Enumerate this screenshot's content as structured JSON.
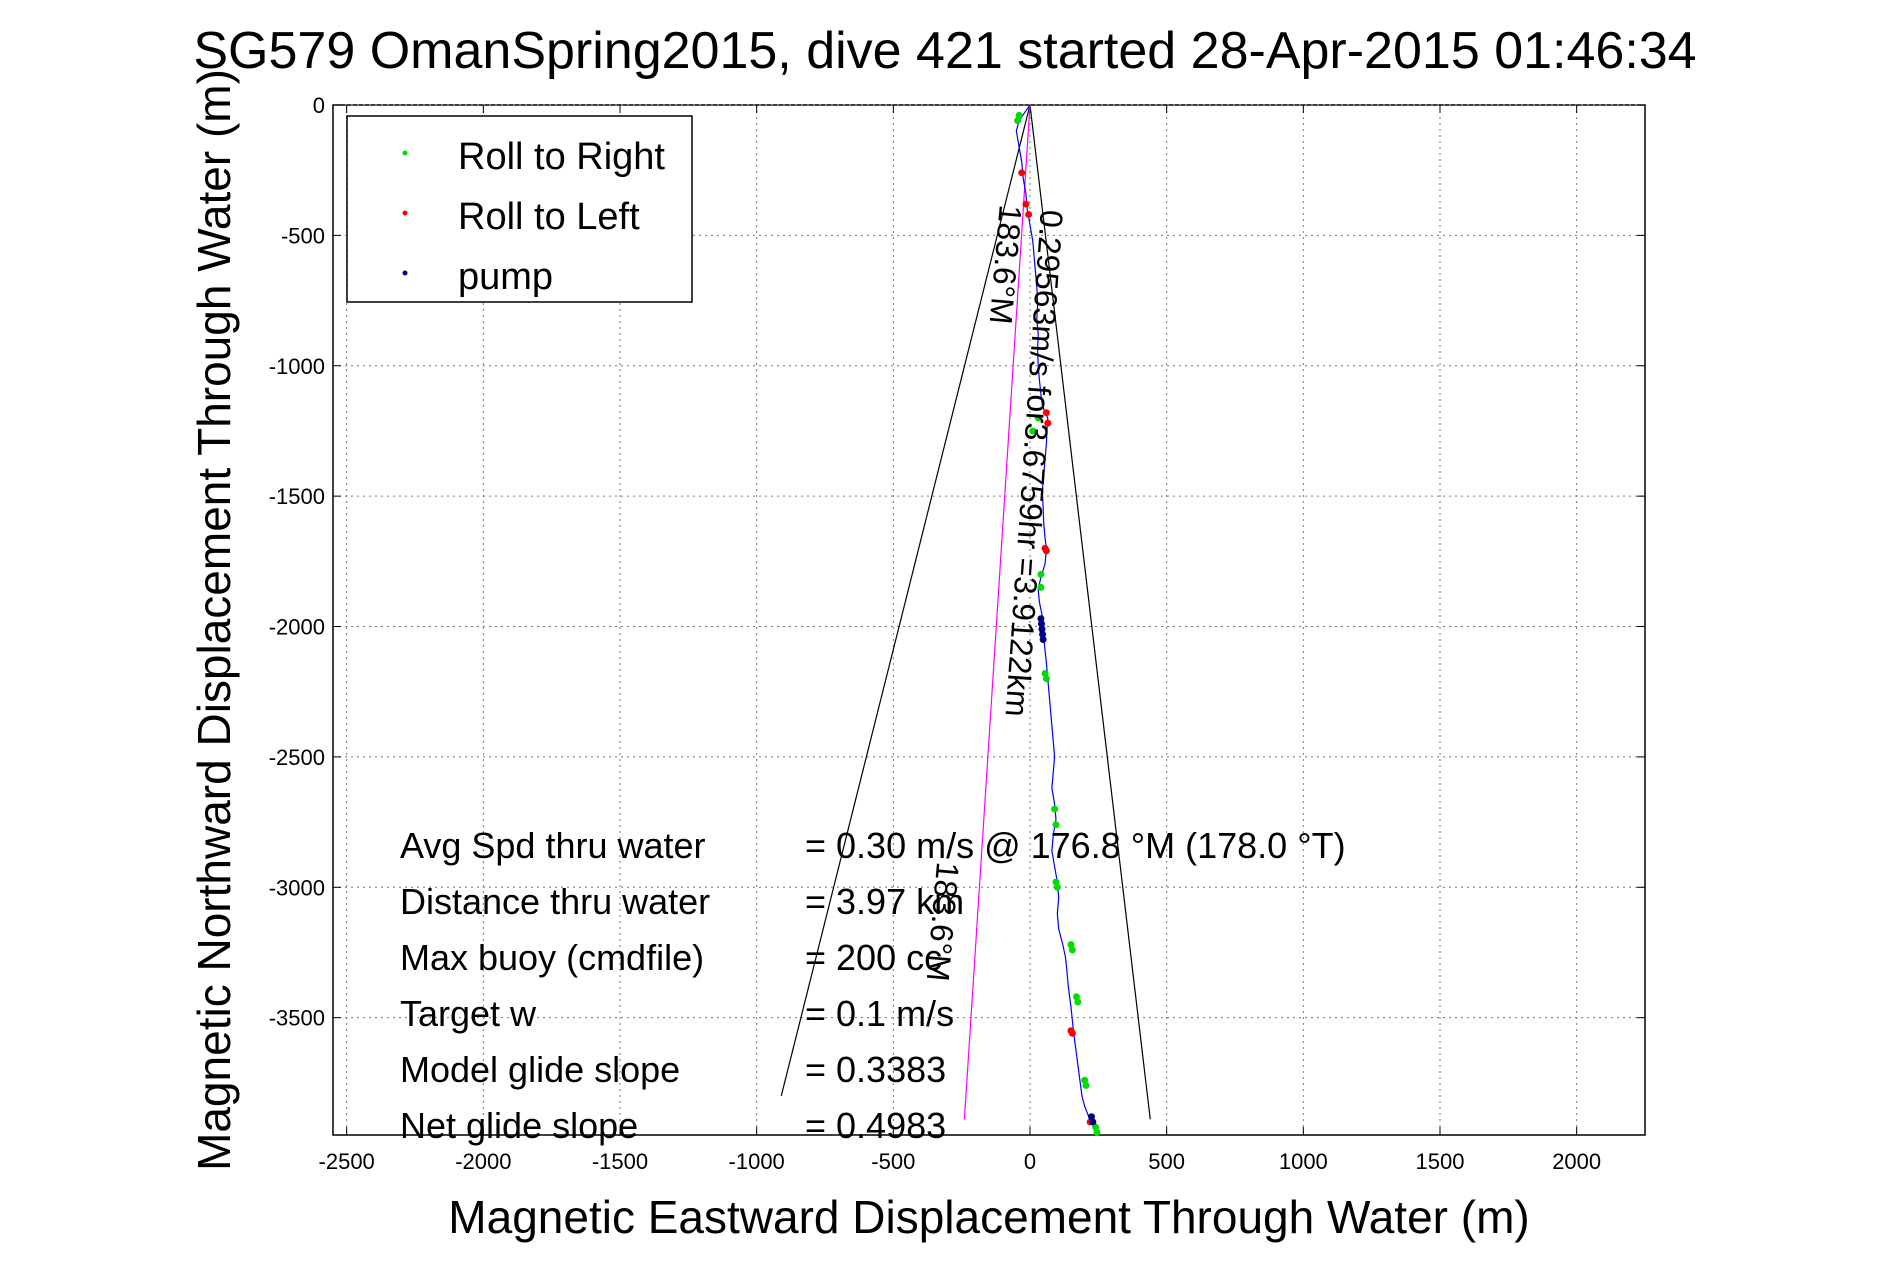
{
  "chart_data": {
    "type": "scatter",
    "title": "SG579 OmanSpring2015, dive 421 started 28-Apr-2015 01:46:34",
    "xlabel": "Magnetic Eastward Displacement Through Water (m)",
    "ylabel": "Magnetic Northward Displacement Through Water (m)",
    "xlim": [
      -2550,
      2250
    ],
    "ylim": [
      -3950,
      0
    ],
    "xticks": [
      -2500,
      -2000,
      -1500,
      -1000,
      -500,
      0,
      500,
      1000,
      1500,
      2000
    ],
    "yticks": [
      0,
      -500,
      -1000,
      -1500,
      -2000,
      -2500,
      -3000,
      -3500
    ],
    "grid": true,
    "legend": {
      "placement": "top-left",
      "entries": [
        {
          "label": "Roll to Right",
          "color": "#00dd00"
        },
        {
          "label": "Roll to Left",
          "color": "#ff0000"
        },
        {
          "label": "pump",
          "color": "#000080"
        }
      ]
    },
    "track": {
      "color": "#0000ff",
      "points": [
        [
          0,
          0
        ],
        [
          -20,
          -30
        ],
        [
          -40,
          -60
        ],
        [
          -50,
          -100
        ],
        [
          -40,
          -160
        ],
        [
          -30,
          -220
        ],
        [
          -25,
          -280
        ],
        [
          -15,
          -340
        ],
        [
          -10,
          -400
        ],
        [
          0,
          -460
        ],
        [
          10,
          -520
        ],
        [
          15,
          -580
        ],
        [
          20,
          -640
        ],
        [
          25,
          -700
        ],
        [
          28,
          -760
        ],
        [
          25,
          -820
        ],
        [
          30,
          -880
        ],
        [
          28,
          -940
        ],
        [
          30,
          -1000
        ],
        [
          35,
          -1060
        ],
        [
          40,
          -1110
        ],
        [
          45,
          -1150
        ],
        [
          55,
          -1180
        ],
        [
          65,
          -1200
        ],
        [
          62,
          -1250
        ],
        [
          60,
          -1300
        ],
        [
          55,
          -1360
        ],
        [
          50,
          -1420
        ],
        [
          45,
          -1480
        ],
        [
          48,
          -1540
        ],
        [
          50,
          -1600
        ],
        [
          55,
          -1660
        ],
        [
          60,
          -1700
        ],
        [
          55,
          -1760
        ],
        [
          40,
          -1810
        ],
        [
          30,
          -1860
        ],
        [
          35,
          -1910
        ],
        [
          45,
          -1960
        ],
        [
          50,
          -2000
        ],
        [
          50,
          -2040
        ],
        [
          55,
          -2090
        ],
        [
          60,
          -2140
        ],
        [
          65,
          -2200
        ],
        [
          70,
          -2260
        ],
        [
          75,
          -2320
        ],
        [
          80,
          -2380
        ],
        [
          85,
          -2440
        ],
        [
          90,
          -2500
        ],
        [
          85,
          -2560
        ],
        [
          80,
          -2620
        ],
        [
          90,
          -2680
        ],
        [
          95,
          -2740
        ],
        [
          85,
          -2800
        ],
        [
          80,
          -2860
        ],
        [
          90,
          -2920
        ],
        [
          100,
          -2980
        ],
        [
          105,
          -3040
        ],
        [
          100,
          -3100
        ],
        [
          105,
          -3160
        ],
        [
          120,
          -3220
        ],
        [
          130,
          -3270
        ],
        [
          135,
          -3320
        ],
        [
          140,
          -3380
        ],
        [
          145,
          -3420
        ],
        [
          150,
          -3460
        ],
        [
          155,
          -3510
        ],
        [
          160,
          -3560
        ],
        [
          165,
          -3600
        ],
        [
          170,
          -3640
        ],
        [
          175,
          -3680
        ],
        [
          180,
          -3720
        ],
        [
          185,
          -3760
        ],
        [
          190,
          -3800
        ],
        [
          200,
          -3840
        ],
        [
          215,
          -3880
        ],
        [
          230,
          -3910
        ],
        [
          240,
          -3940
        ]
      ]
    },
    "roll_right_points": [
      [
        -40,
        -40
      ],
      [
        -45,
        -60
      ],
      [
        30,
        -1200
      ],
      [
        10,
        -1250
      ],
      [
        40,
        -1800
      ],
      [
        40,
        -1850
      ],
      [
        55,
        -2180
      ],
      [
        60,
        -2200
      ],
      [
        90,
        -2700
      ],
      [
        95,
        -2760
      ],
      [
        95,
        -2980
      ],
      [
        100,
        -3000
      ],
      [
        150,
        -3220
      ],
      [
        155,
        -3240
      ],
      [
        170,
        -3420
      ],
      [
        175,
        -3440
      ],
      [
        200,
        -3740
      ],
      [
        205,
        -3760
      ],
      [
        240,
        -3920
      ],
      [
        245,
        -3940
      ]
    ],
    "roll_left_points": [
      [
        -30,
        -260
      ],
      [
        -15,
        -380
      ],
      [
        -5,
        -420
      ],
      [
        60,
        -1180
      ],
      [
        65,
        -1220
      ],
      [
        55,
        -1700
      ],
      [
        60,
        -1710
      ],
      [
        150,
        -3550
      ],
      [
        155,
        -3560
      ],
      [
        220,
        -3900
      ]
    ],
    "pump_points": [
      [
        40,
        -1970
      ],
      [
        42,
        -1990
      ],
      [
        44,
        -2010
      ],
      [
        46,
        -2030
      ],
      [
        48,
        -2050
      ],
      [
        225,
        -3880
      ],
      [
        230,
        -3900
      ]
    ],
    "cone_lines": [
      {
        "color": "#000000",
        "points": [
          [
            0,
            0
          ],
          [
            -910,
            -3800
          ]
        ]
      },
      {
        "color": "#000000",
        "points": [
          [
            0,
            0
          ],
          [
            440,
            -3890
          ]
        ]
      }
    ],
    "heading_line": {
      "color": "#ff00ff",
      "points": [
        [
          0,
          0
        ],
        [
          -240,
          -3890
        ]
      ]
    },
    "annotations": [
      {
        "text": "0.29563m/s for3.6759hr =3.9122km",
        "x": 40,
        "y": -400,
        "rotation": 94
      },
      {
        "text": "183.6°M",
        "x": -110,
        "y": -380,
        "rotation": 95
      },
      {
        "text": "183.6°M",
        "x": -340,
        "y": -2900,
        "rotation": 95
      }
    ],
    "stats": [
      {
        "label": "Avg Spd thru water",
        "value": "=  0.30 m/s @  176.8 °M (178.0 °T)"
      },
      {
        "label": "Distance thru water",
        "value": "=  3.97 km"
      },
      {
        "label": "Max buoy (cmdfile)",
        "value": "= 200 cc"
      },
      {
        "label": "Target w",
        "value": "= 0.1 m/s"
      },
      {
        "label": "Model glide slope",
        "value": "= 0.3383"
      },
      {
        "label": "Net glide slope",
        "value": "= 0.4983"
      }
    ]
  }
}
